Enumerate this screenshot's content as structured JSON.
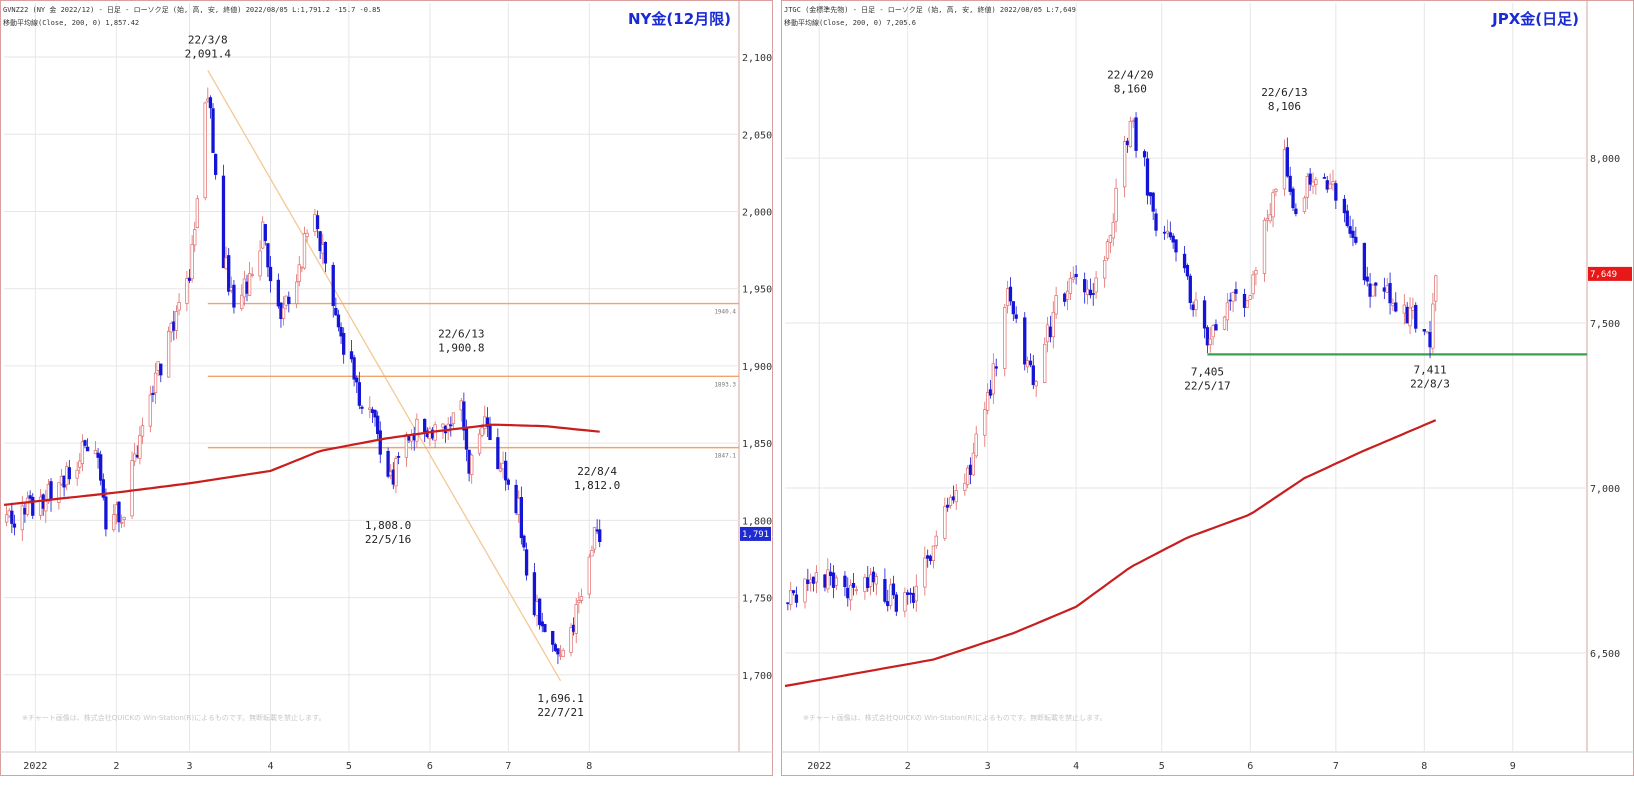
{
  "chart_data": [
    {
      "id": "left",
      "type": "candlestick",
      "title": "NY金(12月限)",
      "header_line1": "GVNZ22 (NY 金 2022/12) - 日足 - ローソク足 (始, 高, 安, 終値)  2022/08/05 L:1,791.2 -15.7 -0.85",
      "header_line2": "移動平均線(Close, 200, 0) 1,857.42",
      "footnote": "※チャート画像は、株式会社QUICKの Win-Station(R)によるものです。無断転載を禁止します。",
      "current_price_label": "1,791.2",
      "current_price": 1791.2,
      "ylim": [
        1650,
        2135
      ],
      "y_ticks": [
        1700,
        1750,
        1800,
        1850,
        1900,
        1950,
        2000,
        2050,
        2100
      ],
      "y_tick_labels": [
        "1,700.0",
        "1,750.0",
        "1,800.0",
        "1,850.0",
        "1,900.0",
        "1,950.0",
        "2,000.0",
        "2,050.0",
        "2,100.0"
      ],
      "date_range": [
        "2021-12-20",
        "2022-09-25"
      ],
      "x_ticks": [
        {
          "date": "2022-01-01",
          "label": "2022"
        },
        {
          "date": "2022-02-01",
          "label": "2"
        },
        {
          "date": "2022-03-01",
          "label": "3"
        },
        {
          "date": "2022-04-01",
          "label": "4"
        },
        {
          "date": "2022-05-01",
          "label": "5"
        },
        {
          "date": "2022-06-01",
          "label": "6"
        },
        {
          "date": "2022-07-01",
          "label": "7"
        },
        {
          "date": "2022-08-01",
          "label": "8"
        }
      ],
      "anchors": [
        {
          "date": "2021-12-21",
          "price": 1800
        },
        {
          "date": "2022-01-05",
          "price": 1815
        },
        {
          "date": "2022-01-18",
          "price": 1842
        },
        {
          "date": "2022-01-25",
          "price": 1845
        },
        {
          "date": "2022-01-28",
          "price": 1795
        },
        {
          "date": "2022-02-04",
          "price": 1808
        },
        {
          "date": "2022-02-11",
          "price": 1860
        },
        {
          "date": "2022-02-18",
          "price": 1900
        },
        {
          "date": "2022-02-24",
          "price": 1930
        },
        {
          "date": "2022-03-01",
          "price": 1960
        },
        {
          "date": "2022-03-08",
          "price": 2080
        },
        {
          "date": "2022-03-14",
          "price": 1970
        },
        {
          "date": "2022-03-18",
          "price": 1940
        },
        {
          "date": "2022-03-25",
          "price": 1955
        },
        {
          "date": "2022-03-29",
          "price": 1985
        },
        {
          "date": "2022-04-05",
          "price": 1935
        },
        {
          "date": "2022-04-12",
          "price": 1965
        },
        {
          "date": "2022-04-18",
          "price": 2005
        },
        {
          "date": "2022-04-22",
          "price": 1960
        },
        {
          "date": "2022-04-28",
          "price": 1920
        },
        {
          "date": "2022-05-05",
          "price": 1880
        },
        {
          "date": "2022-05-10",
          "price": 1870
        },
        {
          "date": "2022-05-16",
          "price": 1820
        },
        {
          "date": "2022-05-24",
          "price": 1860
        },
        {
          "date": "2022-06-01",
          "price": 1860
        },
        {
          "date": "2022-06-08",
          "price": 1855
        },
        {
          "date": "2022-06-13",
          "price": 1880
        },
        {
          "date": "2022-06-16",
          "price": 1835
        },
        {
          "date": "2022-06-22",
          "price": 1860
        },
        {
          "date": "2022-06-29",
          "price": 1830
        },
        {
          "date": "2022-07-05",
          "price": 1810
        },
        {
          "date": "2022-07-08",
          "price": 1760
        },
        {
          "date": "2022-07-14",
          "price": 1730
        },
        {
          "date": "2022-07-21",
          "price": 1710
        },
        {
          "date": "2022-07-26",
          "price": 1730
        },
        {
          "date": "2022-08-01",
          "price": 1780
        },
        {
          "date": "2022-08-04",
          "price": 1800
        },
        {
          "date": "2022-08-05",
          "price": 1791
        }
      ],
      "moving_average_200": [
        {
          "date": "2021-12-20",
          "price": 1810
        },
        {
          "date": "2022-01-10",
          "price": 1814
        },
        {
          "date": "2022-02-01",
          "price": 1818
        },
        {
          "date": "2022-03-01",
          "price": 1824
        },
        {
          "date": "2022-04-01",
          "price": 1832
        },
        {
          "date": "2022-04-20",
          "price": 1845
        },
        {
          "date": "2022-05-15",
          "price": 1853
        },
        {
          "date": "2022-06-05",
          "price": 1858
        },
        {
          "date": "2022-06-25",
          "price": 1862
        },
        {
          "date": "2022-07-15",
          "price": 1861
        },
        {
          "date": "2022-08-05",
          "price": 1857.4
        }
      ],
      "horizontal_levels": [
        {
          "price": 1940.4,
          "label": "1940.4",
          "from": "2022-03-08"
        },
        {
          "price": 1893.3,
          "label": "1893.3",
          "from": "2022-03-08"
        },
        {
          "price": 1847.1,
          "label": "1847.1",
          "from": "2022-03-08"
        }
      ],
      "trendline": [
        {
          "date": "2022-03-08",
          "price": 2091.4
        },
        {
          "date": "2022-07-21",
          "price": 1696.1
        }
      ],
      "annotations": [
        {
          "date": "2022-03-08",
          "price": 2091.4,
          "position": "above",
          "lines": [
            "22/3/8",
            "2,091.4"
          ]
        },
        {
          "date": "2022-05-16",
          "price": 1808.0,
          "position": "below",
          "lines": [
            "1,808.0",
            "22/5/16"
          ]
        },
        {
          "date": "2022-06-13",
          "price": 1900.8,
          "position": "above",
          "lines": [
            "22/6/13",
            "1,900.8"
          ]
        },
        {
          "date": "2022-07-21",
          "price": 1696.1,
          "position": "below",
          "lines": [
            "1,696.1",
            "22/7/21"
          ]
        },
        {
          "date": "2022-08-04",
          "price": 1812.0,
          "position": "above",
          "lines": [
            "22/8/4",
            "1,812.0"
          ]
        }
      ]
    },
    {
      "id": "right",
      "type": "candlestick",
      "title": "JPX金(日足)",
      "header_line1": "JTGC (金標準先物) - 日足 - ローソク足 (始, 高, 安, 終値)  2022/08/05 L:7,649",
      "header_line2": "移動平均線(Close, 200, 0) 7,205.6",
      "footnote": "※チャート画像は、株式会社QUICKの Win-Station(R)によるものです。無断転載を禁止します。",
      "current_price_label": "7,649",
      "current_price": 7649,
      "ylim": [
        6200,
        8470
      ],
      "y_ticks": [
        6500,
        7000,
        7500,
        8000
      ],
      "y_tick_labels": [
        "6,500",
        "7,000",
        "7,500",
        "8,000"
      ],
      "date_range": [
        "2021-12-20",
        "2022-09-27"
      ],
      "x_ticks": [
        {
          "date": "2022-01-01",
          "label": "2022"
        },
        {
          "date": "2022-02-01",
          "label": "2"
        },
        {
          "date": "2022-03-01",
          "label": "3"
        },
        {
          "date": "2022-04-01",
          "label": "4"
        },
        {
          "date": "2022-05-01",
          "label": "5"
        },
        {
          "date": "2022-06-01",
          "label": "6"
        },
        {
          "date": "2022-07-01",
          "label": "7"
        },
        {
          "date": "2022-08-01",
          "label": "8"
        },
        {
          "date": "2022-09-01",
          "label": "9"
        }
      ],
      "anchors": [
        {
          "date": "2021-12-21",
          "price": 6650
        },
        {
          "date": "2022-01-05",
          "price": 6740
        },
        {
          "date": "2022-01-12",
          "price": 6680
        },
        {
          "date": "2022-01-20",
          "price": 6720
        },
        {
          "date": "2022-01-27",
          "price": 6660
        },
        {
          "date": "2022-02-01",
          "price": 6640
        },
        {
          "date": "2022-02-08",
          "price": 6790
        },
        {
          "date": "2022-02-15",
          "price": 6950
        },
        {
          "date": "2022-02-22",
          "price": 7050
        },
        {
          "date": "2022-03-01",
          "price": 7250
        },
        {
          "date": "2022-03-08",
          "price": 7580
        },
        {
          "date": "2022-03-14",
          "price": 7380
        },
        {
          "date": "2022-03-18",
          "price": 7320
        },
        {
          "date": "2022-03-25",
          "price": 7560
        },
        {
          "date": "2022-03-31",
          "price": 7640
        },
        {
          "date": "2022-04-06",
          "price": 7600
        },
        {
          "date": "2022-04-12",
          "price": 7750
        },
        {
          "date": "2022-04-20",
          "price": 8100
        },
        {
          "date": "2022-04-25",
          "price": 7980
        },
        {
          "date": "2022-04-28",
          "price": 7820
        },
        {
          "date": "2022-05-05",
          "price": 7760
        },
        {
          "date": "2022-05-12",
          "price": 7550
        },
        {
          "date": "2022-05-17",
          "price": 7470
        },
        {
          "date": "2022-05-24",
          "price": 7560
        },
        {
          "date": "2022-05-31",
          "price": 7560
        },
        {
          "date": "2022-06-06",
          "price": 7780
        },
        {
          "date": "2022-06-13",
          "price": 8000
        },
        {
          "date": "2022-06-17",
          "price": 7820
        },
        {
          "date": "2022-06-23",
          "price": 7950
        },
        {
          "date": "2022-06-30",
          "price": 7900
        },
        {
          "date": "2022-07-06",
          "price": 7780
        },
        {
          "date": "2022-07-12",
          "price": 7600
        },
        {
          "date": "2022-07-20",
          "price": 7580
        },
        {
          "date": "2022-07-27",
          "price": 7520
        },
        {
          "date": "2022-08-03",
          "price": 7450
        },
        {
          "date": "2022-08-05",
          "price": 7649
        }
      ],
      "moving_average_200": [
        {
          "date": "2021-12-20",
          "price": 6400
        },
        {
          "date": "2022-01-15",
          "price": 6440
        },
        {
          "date": "2022-02-10",
          "price": 6480
        },
        {
          "date": "2022-03-10",
          "price": 6560
        },
        {
          "date": "2022-04-01",
          "price": 6640
        },
        {
          "date": "2022-04-20",
          "price": 6760
        },
        {
          "date": "2022-05-10",
          "price": 6850
        },
        {
          "date": "2022-06-01",
          "price": 6920
        },
        {
          "date": "2022-06-20",
          "price": 7030
        },
        {
          "date": "2022-07-10",
          "price": 7110
        },
        {
          "date": "2022-08-05",
          "price": 7205.6
        }
      ],
      "horizontal_levels": [
        {
          "price": 7405,
          "label": "",
          "from": "2022-05-17",
          "color": "#39a050"
        }
      ],
      "trendline": [],
      "annotations": [
        {
          "date": "2022-04-20",
          "price": 8160,
          "position": "above",
          "lines": [
            "22/4/20",
            "8,160"
          ]
        },
        {
          "date": "2022-05-17",
          "price": 7405,
          "position": "below",
          "lines": [
            "7,405",
            "22/5/17"
          ]
        },
        {
          "date": "2022-06-13",
          "price": 8106,
          "position": "above",
          "lines": [
            "22/6/13",
            "8,106"
          ]
        },
        {
          "date": "2022-08-03",
          "price": 7411,
          "position": "below",
          "lines": [
            "7,411",
            "22/8/3"
          ]
        }
      ]
    }
  ],
  "colors": {
    "up_candle": "#e06a6a",
    "down_candle": "#1414d6",
    "moving_average": "#c81e1e",
    "levels": "#f0a46a",
    "trendline": "#f4c896",
    "support": "#39a050",
    "grid": "#e6e6e6",
    "frame": "#d8a0a0",
    "badge_left": "#1f2ad0",
    "badge_right": "#e81818"
  }
}
